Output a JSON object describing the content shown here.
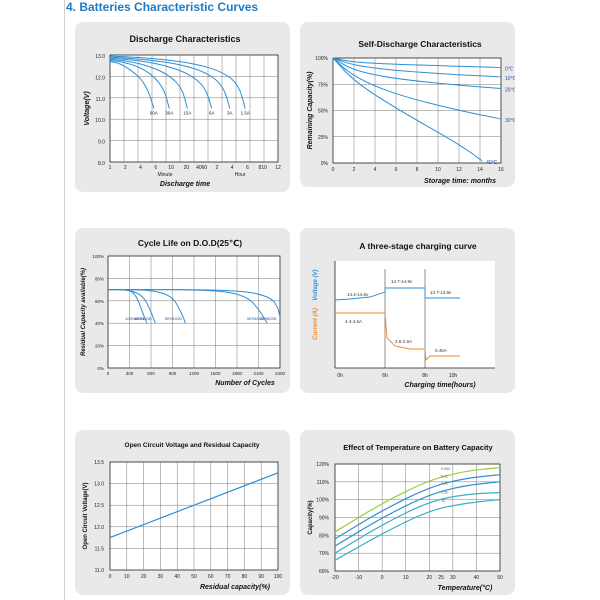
{
  "section_heading": "4.  Batteries Characteristic Curves",
  "colors": {
    "curve": "#2f8fd2",
    "grid": "#333333",
    "axis": "#222222",
    "charge_voltage": "#2f8fd2",
    "charge_current": "#f08a24"
  },
  "chart_data": [
    {
      "id": "discharge",
      "type": "line",
      "title": "Discharge Characteristics",
      "ylabel": "Voltage(V)",
      "xlabel": "Discharge time",
      "x_section_labels": [
        "Minute",
        "Hour"
      ],
      "yticks": [
        "13.0",
        "12.0",
        "11.0",
        "10.0",
        "9.0",
        "8.0"
      ],
      "ylim": [
        8,
        13
      ],
      "xticks": [
        "1",
        "2",
        "4",
        "6",
        "10",
        "20",
        "4060",
        "2",
        "4",
        "6",
        "810",
        "12"
      ],
      "series": [
        {
          "name": "60A",
          "x": [
            0,
            0.8,
            1.6,
            2.4,
            3.0,
            3.4
          ],
          "y": [
            12.7,
            12.6,
            12.3,
            11.9,
            11.3,
            10.5
          ]
        },
        {
          "name": "30A",
          "x": [
            0,
            1.2,
            2.4,
            3.4,
            4.2,
            4.6
          ],
          "y": [
            12.75,
            12.65,
            12.4,
            12.0,
            11.4,
            10.5
          ]
        },
        {
          "name": "15A",
          "x": [
            0,
            1.6,
            3.2,
            4.6,
            5.6,
            6.0
          ],
          "y": [
            12.8,
            12.7,
            12.45,
            12.05,
            11.45,
            10.5
          ]
        },
        {
          "name": "6A",
          "x": [
            0,
            2.2,
            4.4,
            6.2,
            7.4,
            7.9
          ],
          "y": [
            12.85,
            12.75,
            12.5,
            12.1,
            11.5,
            10.5
          ]
        },
        {
          "name": "3A",
          "x": [
            0,
            2.8,
            5.6,
            7.6,
            8.8,
            9.3
          ],
          "y": [
            12.9,
            12.8,
            12.55,
            12.15,
            11.55,
            10.5
          ]
        },
        {
          "name": "1.5A",
          "x": [
            0,
            3.4,
            6.6,
            8.8,
            10.0,
            10.5
          ],
          "y": [
            12.95,
            12.85,
            12.6,
            12.2,
            11.6,
            10.5
          ]
        }
      ]
    },
    {
      "id": "self_discharge",
      "type": "line",
      "title": "Self-Discharge Characteristics",
      "ylabel": "Remaining Capacity(%)",
      "xlabel": "Storage time: months",
      "yticks": [
        "100%",
        "75%",
        "50%",
        "25%",
        "0%"
      ],
      "ylim": [
        0,
        100
      ],
      "xticks": [
        "0",
        "2",
        "4",
        "6",
        "8",
        "10",
        "12",
        "14",
        "16"
      ],
      "xlim": [
        0,
        16
      ],
      "series": [
        {
          "name": "0℃",
          "x": [
            0,
            2,
            6,
            12,
            16
          ],
          "y": [
            100,
            96,
            94,
            92,
            91
          ]
        },
        {
          "name": "10℃",
          "x": [
            0,
            2,
            6,
            12,
            16
          ],
          "y": [
            100,
            93,
            88,
            84,
            82
          ]
        },
        {
          "name": "20℃",
          "x": [
            0,
            2,
            6,
            12,
            16
          ],
          "y": [
            100,
            88,
            80,
            74,
            71
          ]
        },
        {
          "name": "30℃",
          "x": [
            0,
            2,
            6,
            12,
            16
          ],
          "y": [
            100,
            82,
            65,
            50,
            42
          ]
        },
        {
          "name": "40℃",
          "x": [
            0,
            2,
            6,
            12,
            14.2
          ],
          "y": [
            100,
            78,
            52,
            18,
            2
          ]
        }
      ]
    },
    {
      "id": "cycle_life",
      "type": "line",
      "title": "Cycle Life on D.O.D(25℃)",
      "ylabel": "Residual Capacity available(%)",
      "xlabel": "Number of Cycles",
      "yticks": [
        "100%",
        "80%",
        "60%",
        "40%",
        "20%",
        "0%"
      ],
      "ylim": [
        0,
        100
      ],
      "xticks": [
        "0",
        "300",
        "600",
        "900",
        "1200",
        "1500",
        "1800",
        "2100",
        "2400"
      ],
      "xlim": [
        0,
        2400
      ],
      "series": [
        {
          "name": "100%DOD",
          "x": [
            0,
            300,
            400,
            480,
            540
          ],
          "y": [
            70,
            70,
            64,
            50,
            40
          ]
        },
        {
          "name": "80%DOD",
          "x": [
            0,
            300,
            500,
            600,
            660
          ],
          "y": [
            70,
            70,
            64,
            50,
            40
          ]
        },
        {
          "name": "50%DOD",
          "x": [
            0,
            600,
            900,
            1020,
            1080
          ],
          "y": [
            70,
            70,
            64,
            50,
            40
          ]
        },
        {
          "name": "30%DOD",
          "x": [
            0,
            1500,
            1950,
            2130,
            2220
          ],
          "y": [
            70,
            70,
            64,
            50,
            40
          ]
        },
        {
          "name": "20%DOD",
          "x": [
            0,
            1800,
            2250,
            2370,
            2400
          ],
          "y": [
            70,
            70,
            64,
            55,
            45
          ]
        }
      ]
    },
    {
      "id": "charging",
      "type": "line",
      "title": "A three-stage charging curve",
      "ylabel_voltage": "Voltage (V)",
      "ylabel_current": "Current (A)",
      "xlabel": "Charging time(hours)",
      "xticks": [
        "0h",
        "6h",
        "8h",
        "10h"
      ],
      "annotations": [
        "14.4-14.8v",
        "14.7-14.9v",
        "13.7-13.8v",
        "4.4-4.6A",
        "2.6-2.8A",
        "0.45A"
      ],
      "stage_boundaries_hours": [
        6,
        8
      ]
    },
    {
      "id": "ocv",
      "type": "line",
      "title": "Open Circuit Voltage and Residual Capacity",
      "ylabel": "Open Circuit Voltage(V)",
      "xlabel": "Residual capacity(%)",
      "yticks": [
        "13.5",
        "13.0",
        "12.5",
        "12.0",
        "11.5",
        "11.0"
      ],
      "ylim": [
        11,
        13.5
      ],
      "xticks": [
        "0",
        "10",
        "20",
        "30",
        "40",
        "50",
        "60",
        "70",
        "80",
        "90",
        "100"
      ],
      "xlim": [
        0,
        100
      ],
      "series": [
        {
          "name": "OCV",
          "x": [
            0,
            100
          ],
          "y": [
            11.75,
            13.25
          ]
        }
      ]
    },
    {
      "id": "temperature",
      "type": "line",
      "title": "Effect of Temperature on Battery Capacity",
      "ylabel": "Capacity(%)",
      "xlabel": "Temperature(°C)",
      "yticks": [
        "120%",
        "110%",
        "100%",
        "90%",
        "80%",
        "70%",
        "60%"
      ],
      "ylim": [
        60,
        120
      ],
      "xticks": [
        "-20",
        "-10",
        "0",
        "10",
        "20",
        "25",
        "30",
        "40",
        "50"
      ],
      "xlim": [
        -20,
        50
      ],
      "series": [
        {
          "name": "0.05C",
          "color": "#9ccc3c",
          "x": [
            -20,
            0,
            20,
            35,
            50
          ],
          "y": [
            82,
            98,
            111,
            116,
            118
          ]
        },
        {
          "name": "0.1C",
          "color": "#2f8fd2",
          "x": [
            -20,
            0,
            20,
            35,
            50
          ],
          "y": [
            78,
            94,
            107,
            112,
            114
          ]
        },
        {
          "name": "0.2C",
          "color": "#2f8fd2",
          "x": [
            -20,
            0,
            20,
            35,
            50
          ],
          "y": [
            74,
            90,
            103,
            108,
            110
          ]
        },
        {
          "name": "0.5C",
          "color": "#35b0c4",
          "x": [
            -20,
            0,
            20,
            35,
            50
          ],
          "y": [
            70,
            86,
            99,
            103,
            104
          ]
        },
        {
          "name": "1C",
          "color": "#35b0c4",
          "x": [
            -20,
            0,
            20,
            35,
            50
          ],
          "y": [
            66,
            81,
            94,
            98,
            100
          ]
        }
      ]
    }
  ]
}
